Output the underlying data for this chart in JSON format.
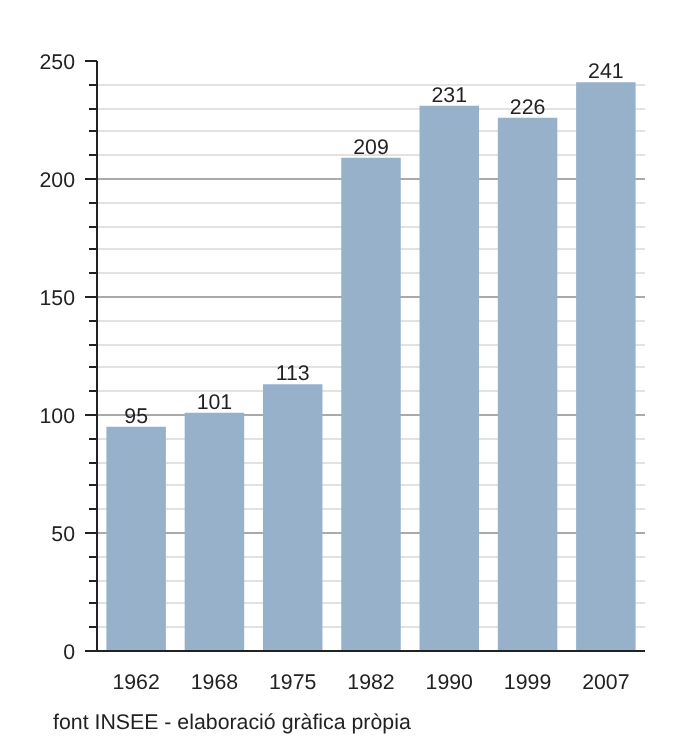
{
  "chart_data": {
    "type": "bar",
    "categories": [
      "1962",
      "1968",
      "1975",
      "1982",
      "1990",
      "1999",
      "2007"
    ],
    "values": [
      95,
      101,
      113,
      209,
      231,
      226,
      241
    ],
    "color": "#97b1cb",
    "ylim": [
      0,
      250
    ],
    "yticks": [
      0,
      50,
      100,
      150,
      200,
      250
    ],
    "grid": "y",
    "data_labels": true,
    "annotations": [
      "font INSEE - elaboració gràfica pròpia"
    ]
  }
}
